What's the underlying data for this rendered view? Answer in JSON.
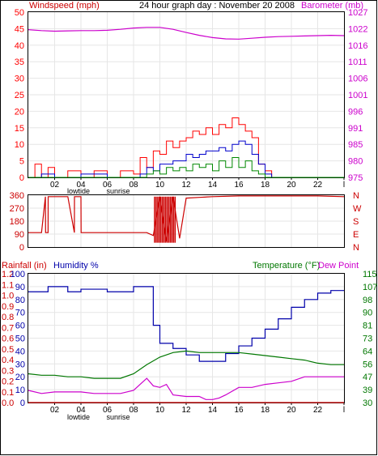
{
  "header": {
    "left_label": "Windspeed (mph)",
    "title": "24 hour graph day : November 20 2008",
    "right_label": "Barometer (mb)"
  },
  "top_panel": {
    "wind_ticks": [
      "0",
      "5",
      "10",
      "15",
      "20",
      "25",
      "30",
      "35",
      "40",
      "45",
      "50"
    ],
    "baro_ticks": [
      "975",
      "980",
      "985",
      "991",
      "996",
      "1001",
      "1006",
      "1011",
      "1016",
      "1022",
      "1027"
    ],
    "x_ticks": [
      "02",
      "04",
      "06",
      "08",
      "10",
      "12",
      "14",
      "16",
      "18",
      "20",
      "22",
      "l"
    ],
    "event_labels": [
      "lowtide",
      "sunrise"
    ]
  },
  "mid_panel": {
    "deg_ticks": [
      "0",
      "90",
      "180",
      "270",
      "360"
    ],
    "compass": [
      "N",
      "W",
      "S",
      "E",
      "N"
    ]
  },
  "bottom_panel": {
    "rain_label": "Rainfall (in)",
    "humidity_label": "Humidity %",
    "temp_label": "Temperature (°F)",
    "dew_label": "Dew Point",
    "rain_ticks": [
      "0.0",
      "0.1",
      "0.2",
      "0.3",
      "0.4",
      "0.5",
      "0.6",
      "0.7",
      "0.8",
      "0.9",
      "1.0",
      "1.1",
      "1.2"
    ],
    "hum_ticks": [
      "0",
      "10",
      "20",
      "30",
      "40",
      "50",
      "60",
      "70",
      "80",
      "90",
      "100"
    ],
    "temp_ticks": [
      "30",
      "39",
      "47",
      "56",
      "64",
      "73",
      "81",
      "90",
      "98",
      "107",
      "115"
    ],
    "x_ticks": [
      "02",
      "04",
      "06",
      "08",
      "10",
      "12",
      "14",
      "16",
      "18",
      "20",
      "22",
      "l"
    ],
    "event_labels": [
      "lowtide",
      "sunrise"
    ]
  },
  "colors": {
    "wind_gust": "#ff0000",
    "wind_avg": "#0000cc",
    "wind_low": "#008800",
    "baro": "#cc00cc",
    "direction": "#cc0000",
    "humidity": "#0000aa",
    "temperature": "#007700",
    "dew": "#cc00cc",
    "rain": "#cc0000"
  },
  "chart_data": [
    {
      "type": "line",
      "xlabel": "",
      "x_unit": "hour",
      "xlim": [
        0,
        24
      ],
      "series": [
        {
          "name": "Windspeed (mph)",
          "axis": "left",
          "ylim": [
            0,
            50
          ],
          "x": [
            0,
            0.5,
            1,
            1.5,
            2,
            3,
            4,
            5,
            6,
            7,
            8,
            8.5,
            9,
            9.5,
            10,
            10.5,
            11,
            11.5,
            12,
            12.5,
            13,
            13.5,
            14,
            14.5,
            15,
            15.5,
            16,
            16.5,
            17,
            17.5,
            18,
            18.5,
            19,
            20,
            22,
            24
          ],
          "y": [
            0,
            4,
            0,
            3,
            0,
            2,
            0,
            2,
            0,
            2,
            1,
            6,
            3,
            8,
            7,
            11,
            9,
            11,
            12,
            14,
            13,
            15,
            13,
            16,
            15,
            18,
            16,
            14,
            12,
            4,
            2,
            0,
            0,
            0,
            0,
            0
          ]
        },
        {
          "name": "Wind average",
          "axis": "left",
          "ylim": [
            0,
            50
          ],
          "x": [
            0,
            1,
            2,
            4,
            6,
            8,
            8.5,
            9,
            9.5,
            10,
            10.5,
            11,
            11.5,
            12,
            12.5,
            13,
            13.5,
            14,
            14.5,
            15,
            15.5,
            16,
            16.5,
            17,
            17.5,
            18,
            18.5,
            24
          ],
          "y": [
            0,
            1,
            0,
            1,
            0,
            0,
            1,
            3,
            2,
            4,
            4,
            5,
            5,
            7,
            6,
            7,
            8,
            8,
            9,
            8,
            10,
            11,
            10,
            7,
            4,
            1,
            0,
            0
          ]
        },
        {
          "name": "Wind low",
          "axis": "left",
          "ylim": [
            0,
            50
          ],
          "x": [
            0,
            8.5,
            9,
            9.5,
            10,
            10.5,
            11,
            11.5,
            12,
            12.5,
            13,
            13.5,
            14,
            14.5,
            15,
            15.5,
            16,
            16.5,
            17,
            17.5,
            18,
            24
          ],
          "y": [
            0,
            0,
            1,
            2,
            1,
            3,
            2,
            3,
            2,
            4,
            3,
            4,
            2,
            5,
            3,
            6,
            3,
            5,
            2,
            1,
            0,
            0
          ]
        },
        {
          "name": "Barometer (mb)",
          "axis": "right",
          "ylim": [
            975,
            1027
          ],
          "x": [
            0,
            1,
            2,
            3,
            4,
            5,
            6,
            7,
            8,
            9,
            10,
            11,
            12,
            13,
            14,
            15,
            16,
            17,
            18,
            19,
            20,
            21,
            22,
            23,
            24
          ],
          "y": [
            1021.5,
            1021.2,
            1021,
            1021.1,
            1021.2,
            1021.2,
            1021.3,
            1021.6,
            1022,
            1022.2,
            1022.2,
            1021.6,
            1020.6,
            1019.7,
            1019,
            1018.6,
            1018.5,
            1018.8,
            1019.1,
            1019.3,
            1019.4,
            1019.5,
            1019.6,
            1019.7,
            1019.6
          ]
        }
      ]
    },
    {
      "type": "line",
      "xlim": [
        0,
        24
      ],
      "ylim": [
        0,
        360
      ],
      "series": [
        {
          "name": "Wind direction (deg)",
          "x": [
            0,
            1,
            1.3,
            1.31,
            1.5,
            1.51,
            3,
            3.5,
            3.51,
            4,
            4.01,
            5,
            8,
            9,
            9.5,
            10,
            10.5,
            11,
            11.5,
            12,
            13,
            14,
            16,
            18,
            20,
            22,
            24
          ],
          "y": [
            100,
            100,
            350,
            100,
            100,
            350,
            350,
            100,
            350,
            350,
            100,
            100,
            100,
            100,
            80,
            350,
            40,
            350,
            60,
            340,
            345,
            350,
            355,
            355,
            355,
            355,
            350
          ]
        }
      ]
    },
    {
      "type": "line",
      "xlim": [
        0,
        24
      ],
      "series": [
        {
          "name": "Humidity %",
          "axis": "left",
          "ylim": [
            0,
            100
          ],
          "x": [
            0,
            1,
            1.5,
            2,
            3,
            4,
            5,
            6,
            7,
            8,
            9,
            9.5,
            10,
            11,
            12,
            13,
            14,
            15,
            16,
            17,
            18,
            19,
            20,
            21,
            22,
            23,
            24
          ],
          "y": [
            86,
            86,
            90,
            90,
            86,
            88,
            88,
            86,
            86,
            90,
            90,
            60,
            46,
            42,
            37,
            32,
            32,
            38,
            44,
            50,
            57,
            65,
            74,
            80,
            85,
            87,
            87
          ]
        },
        {
          "name": "Temperature (°F)",
          "axis": "right",
          "ylim": [
            30,
            115
          ],
          "x": [
            0,
            1,
            2,
            3,
            4,
            5,
            6,
            7,
            8,
            9,
            10,
            11,
            12,
            13,
            14,
            15,
            16,
            17,
            18,
            19,
            20,
            21,
            22,
            23,
            24
          ],
          "y": [
            49,
            48,
            48,
            47,
            47,
            46,
            46,
            46,
            49,
            55,
            60,
            63,
            64,
            63,
            63,
            63,
            63,
            62,
            61,
            60,
            59,
            58,
            56,
            55,
            55
          ]
        },
        {
          "name": "Dew Point",
          "axis": "right",
          "ylim": [
            30,
            115
          ],
          "x": [
            0,
            1,
            2,
            3,
            4,
            5,
            6,
            7,
            8,
            8.5,
            9,
            9.5,
            10,
            10.5,
            11,
            12,
            13,
            13.5,
            14,
            14.5,
            15,
            16,
            17,
            18,
            19,
            20,
            21,
            22,
            23,
            24
          ],
          "y": [
            38,
            36,
            37,
            37,
            37,
            36,
            36,
            36,
            38,
            42,
            46,
            41,
            40,
            42,
            35,
            34,
            34,
            32,
            32,
            33,
            35,
            40,
            40,
            42,
            43,
            44,
            47,
            47,
            47,
            47
          ]
        },
        {
          "name": "Rainfall (in)",
          "axis": "left2",
          "ylim": [
            0,
            1.2
          ],
          "x": [
            0,
            24
          ],
          "y": [
            0,
            0
          ]
        }
      ]
    }
  ]
}
